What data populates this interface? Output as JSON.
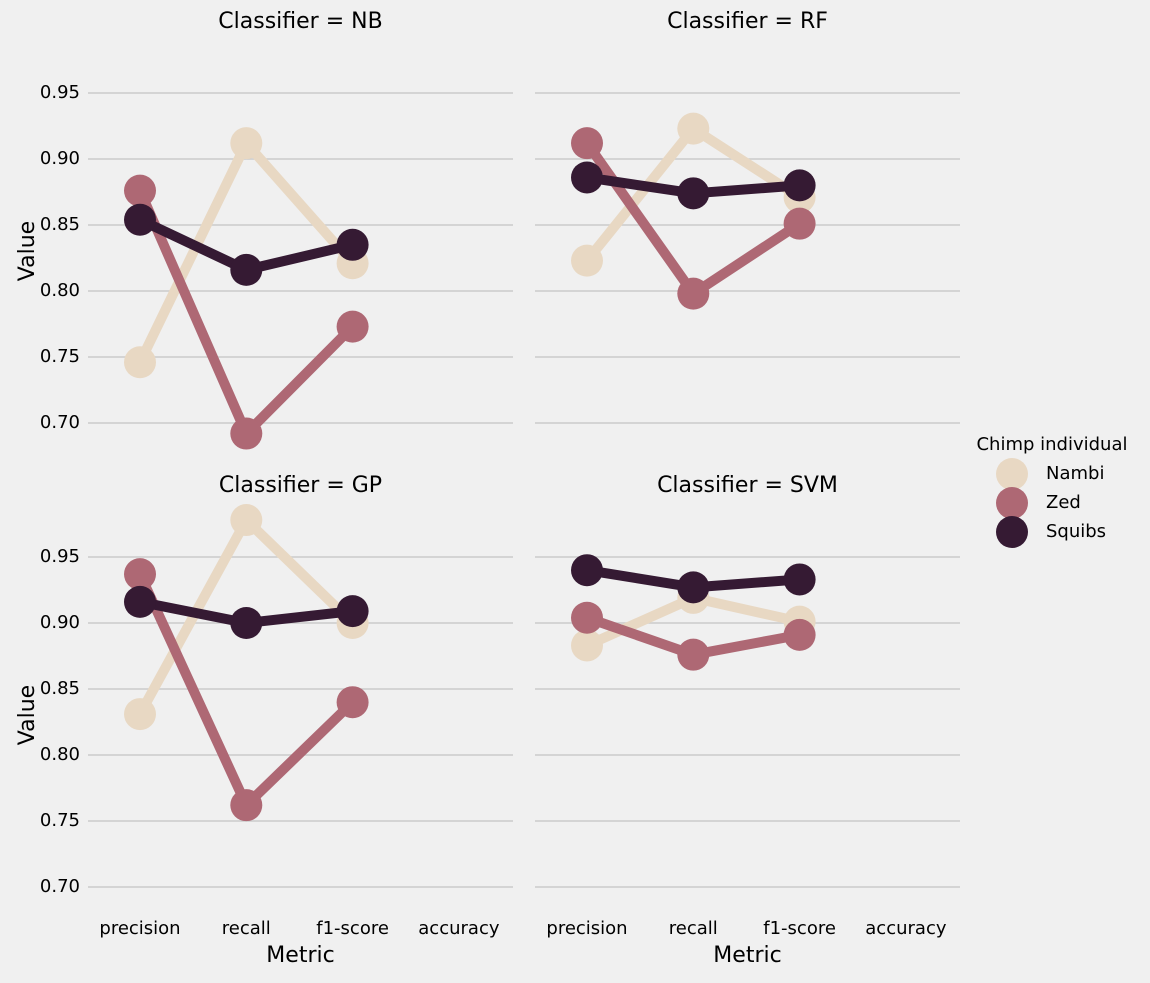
{
  "chart_data": {
    "type": "line",
    "ylabel": "Value",
    "xlabel": "Metric",
    "categories": [
      "precision",
      "recall",
      "f1-score",
      "accuracy"
    ],
    "yticks": [
      0.7,
      0.75,
      0.8,
      0.85,
      0.9,
      0.95
    ],
    "grid": "horizontal",
    "legend": {
      "title": "Chimp individual",
      "placement": "right",
      "entries": [
        {
          "name": "Nambi",
          "color": "#e8d8c3"
        },
        {
          "name": "Zed",
          "color": "#ae6874"
        },
        {
          "name": "Squibs",
          "color": "#351a33"
        }
      ]
    },
    "facets": [
      {
        "title": "Classifier = NB",
        "series": [
          {
            "name": "Nambi",
            "values": [
              0.746,
              0.912,
              0.821
            ]
          },
          {
            "name": "Zed",
            "values": [
              0.876,
              0.692,
              0.773
            ]
          },
          {
            "name": "Squibs",
            "values": [
              0.854,
              0.816,
              0.835
            ]
          }
        ]
      },
      {
        "title": "Classifier = RF",
        "series": [
          {
            "name": "Nambi",
            "values": [
              0.823,
              0.923,
              0.871
            ]
          },
          {
            "name": "Zed",
            "values": [
              0.912,
              0.798,
              0.851
            ]
          },
          {
            "name": "Squibs",
            "values": [
              0.886,
              0.874,
              0.88
            ]
          }
        ]
      },
      {
        "title": "Classifier = GP",
        "series": [
          {
            "name": "Nambi",
            "values": [
              0.831,
              0.978,
              0.9
            ]
          },
          {
            "name": "Zed",
            "values": [
              0.937,
              0.762,
              0.84
            ]
          },
          {
            "name": "Squibs",
            "values": [
              0.916,
              0.9,
              0.909
            ]
          }
        ]
      },
      {
        "title": "Classifier = SVM",
        "series": [
          {
            "name": "Nambi",
            "values": [
              0.883,
              0.919,
              0.901
            ]
          },
          {
            "name": "Zed",
            "values": [
              0.904,
              0.876,
              0.891
            ]
          },
          {
            "name": "Squibs",
            "values": [
              0.94,
              0.927,
              0.933
            ]
          }
        ]
      }
    ]
  }
}
